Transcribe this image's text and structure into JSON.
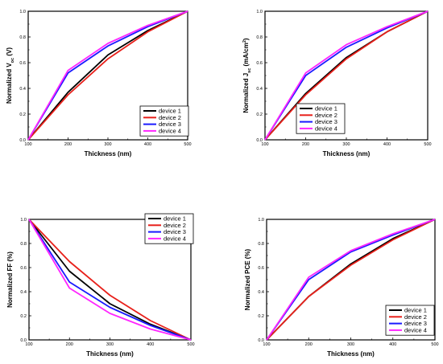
{
  "chart_data": [
    {
      "type": "line",
      "xlabel": "Thickness (nm)",
      "ylabel": {
        "base": "Normalized V",
        "sub": "oc",
        "suffix": " (V)"
      },
      "x": [
        100,
        200,
        300,
        400,
        500
      ],
      "xlim": [
        100,
        500
      ],
      "ylim": [
        0.0,
        1.0
      ],
      "xticks": [
        "100",
        "200",
        "300",
        "400",
        "500"
      ],
      "yticks": [
        "0.0",
        "0.2",
        "0.4",
        "0.6",
        "0.8",
        "1.0"
      ],
      "legend_position": "bottom-right",
      "series": [
        {
          "name": "device 1",
          "color": "#000000",
          "values": [
            0.0,
            0.37,
            0.66,
            0.85,
            1.0
          ]
        },
        {
          "name": "device 2",
          "color": "#e8201a",
          "values": [
            0.0,
            0.35,
            0.63,
            0.84,
            1.0
          ]
        },
        {
          "name": "device 3",
          "color": "#1a1aff",
          "values": [
            0.0,
            0.52,
            0.73,
            0.88,
            1.0
          ]
        },
        {
          "name": "device 4",
          "color": "#ff26ff",
          "values": [
            0.0,
            0.54,
            0.75,
            0.89,
            1.0
          ]
        }
      ]
    },
    {
      "type": "line",
      "xlabel": "Thickness (nm)",
      "ylabel": {
        "base": "Normalized J",
        "sub": "sc",
        "suffix": " (mA/cm",
        "sup": "2",
        "tail": ")"
      },
      "x": [
        100,
        200,
        300,
        400,
        500
      ],
      "xlim": [
        100,
        500
      ],
      "ylim": [
        0.0,
        1.0
      ],
      "xticks": [
        "100",
        "200",
        "300",
        "400",
        "500"
      ],
      "yticks": [
        "0.0",
        "0.2",
        "0.4",
        "0.6",
        "0.8",
        "1.0"
      ],
      "legend_position": "bottom-right",
      "series": [
        {
          "name": "device 1",
          "color": "#000000",
          "values": [
            0.0,
            0.36,
            0.64,
            0.84,
            1.0
          ]
        },
        {
          "name": "device 2",
          "color": "#e8201a",
          "values": [
            0.0,
            0.35,
            0.63,
            0.84,
            1.0
          ]
        },
        {
          "name": "device 3",
          "color": "#1a1aff",
          "values": [
            0.0,
            0.5,
            0.72,
            0.87,
            1.0
          ]
        },
        {
          "name": "device 4",
          "color": "#ff26ff",
          "values": [
            0.0,
            0.52,
            0.74,
            0.88,
            1.0
          ]
        }
      ]
    },
    {
      "type": "line",
      "xlabel": "Thickness (nm)",
      "ylabel": {
        "base": "Normalized FF (%)"
      },
      "x": [
        100,
        200,
        300,
        400,
        500
      ],
      "xlim": [
        100,
        500
      ],
      "ylim": [
        0.0,
        1.0
      ],
      "xticks": [
        "100",
        "200",
        "300",
        "400",
        "500"
      ],
      "yticks": [
        "0.0",
        "0.2",
        "0.4",
        "0.6",
        "0.8",
        "1.0"
      ],
      "legend_position": "top-right",
      "series": [
        {
          "name": "device 1",
          "color": "#000000",
          "values": [
            1.0,
            0.57,
            0.3,
            0.13,
            0.0
          ]
        },
        {
          "name": "device 2",
          "color": "#e8201a",
          "values": [
            1.0,
            0.65,
            0.37,
            0.16,
            0.0
          ]
        },
        {
          "name": "device 3",
          "color": "#1a1aff",
          "values": [
            1.0,
            0.48,
            0.27,
            0.12,
            0.0
          ]
        },
        {
          "name": "device 4",
          "color": "#ff26ff",
          "values": [
            1.0,
            0.43,
            0.22,
            0.09,
            0.0
          ]
        }
      ]
    },
    {
      "type": "line",
      "xlabel": "Thickness (nm)",
      "ylabel": {
        "base": "Normalized PCE (%)"
      },
      "x": [
        100,
        200,
        300,
        400,
        500
      ],
      "xlim": [
        100,
        500
      ],
      "ylim": [
        0.0,
        1.0
      ],
      "xticks": [
        "100",
        "200",
        "300",
        "400",
        "500"
      ],
      "yticks": [
        "0.0",
        "0.2",
        "0.4",
        "0.6",
        "0.8",
        "1.0"
      ],
      "legend_position": "bottom-right",
      "series": [
        {
          "name": "device 1",
          "color": "#000000",
          "values": [
            0.0,
            0.36,
            0.63,
            0.84,
            1.0
          ]
        },
        {
          "name": "device 2",
          "color": "#e8201a",
          "values": [
            0.0,
            0.36,
            0.62,
            0.83,
            1.0
          ]
        },
        {
          "name": "device 3",
          "color": "#1a1aff",
          "values": [
            0.0,
            0.5,
            0.73,
            0.87,
            1.0
          ]
        },
        {
          "name": "device 4",
          "color": "#ff26ff",
          "values": [
            0.0,
            0.52,
            0.74,
            0.88,
            1.0
          ]
        }
      ]
    }
  ]
}
